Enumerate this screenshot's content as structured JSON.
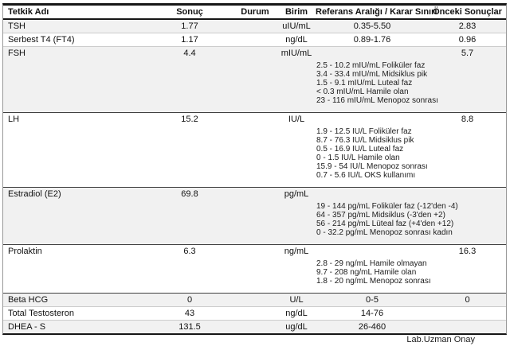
{
  "table": {
    "columns": {
      "name": "Tetkik Adı",
      "result": "Sonuç",
      "status": "Durum",
      "unit": "Birim",
      "reference": "Referans Aralığı / Karar Sınırı",
      "previous": "Önceki Sonuçlar"
    },
    "rows": [
      {
        "name": "TSH",
        "result": "1.77",
        "status": "",
        "unit": "uIU/mL",
        "reference": "0.35-5.50",
        "previous": "2.83",
        "ref_lines": []
      },
      {
        "name": "Serbest T4 (FT4)",
        "result": "1.17",
        "status": "",
        "unit": "ng/dL",
        "reference": "0.89-1.76",
        "previous": "0.96",
        "ref_lines": []
      },
      {
        "name": "FSH",
        "result": "4.4",
        "status": "",
        "unit": "mIU/mL",
        "reference": "",
        "previous": "5.7",
        "ref_lines": [
          "2.5 - 10.2 mIU/mL Foliküler faz",
          "3.4 - 33.4 mIU/mL Midsiklus pik",
          "1.5 - 9.1 mIU/mL Luteal faz",
          "< 0.3 mIU/mL Hamile olan",
          "23 - 116 mIU/mL Menopoz sonrası"
        ]
      },
      {
        "name": "LH",
        "result": "15.2",
        "status": "",
        "unit": "IU/L",
        "reference": "",
        "previous": "8.8",
        "ref_lines": [
          "1.9 - 12.5 IU/L Foliküler faz",
          "8.7 - 76.3 IU/L Midsiklus pik",
          "0.5 - 16.9 IU/L Luteal faz",
          "0 - 1.5 IU/L Hamile olan",
          "15.9 - 54 IU/L Menopoz sonrası",
          "0.7 - 5.6 IU/L OKS kullanımı"
        ]
      },
      {
        "name": "Estradiol (E2)",
        "result": "69.8",
        "status": "",
        "unit": "pg/mL",
        "reference": "",
        "previous": "",
        "ref_lines": [
          "19 - 144 pg/mL Foliküler faz (-12'den -4)",
          "64 - 357 pg/mL Midsiklus (-3'den +2)",
          "56 - 214 pg/mL Lüteal faz (+4'den +12)",
          "0 - 32.2 pg/mL Menopoz sonrası kadın"
        ]
      },
      {
        "name": "Prolaktin",
        "result": "6.3",
        "status": "",
        "unit": "ng/mL",
        "reference": "",
        "previous": "16.3",
        "ref_lines": [
          "2.8 - 29 ng/mL Hamile olmayan",
          "9.7 - 208 ng/mL Hamile olan",
          "1.8 - 20 ng/mL Menopoz sonrası"
        ]
      },
      {
        "name": "Beta HCG",
        "result": "0",
        "status": "",
        "unit": "U/L",
        "reference": "0-5",
        "previous": "0",
        "ref_lines": []
      },
      {
        "name": "Total Testosteron",
        "result": "43",
        "status": "",
        "unit": "ng/dL",
        "reference": "14-76",
        "previous": "",
        "ref_lines": []
      },
      {
        "name": "DHEA - S",
        "result": "131.5",
        "status": "",
        "unit": "ug/dL",
        "reference": "26-460",
        "previous": "",
        "ref_lines": []
      }
    ]
  },
  "footer": {
    "signature": "Lab.Uzman Onay"
  },
  "colors": {
    "row_shade": "#f1f1f1",
    "heavy_border": "#161616",
    "block_border": "#3f3f3f",
    "row_border": "#cccccc"
  }
}
